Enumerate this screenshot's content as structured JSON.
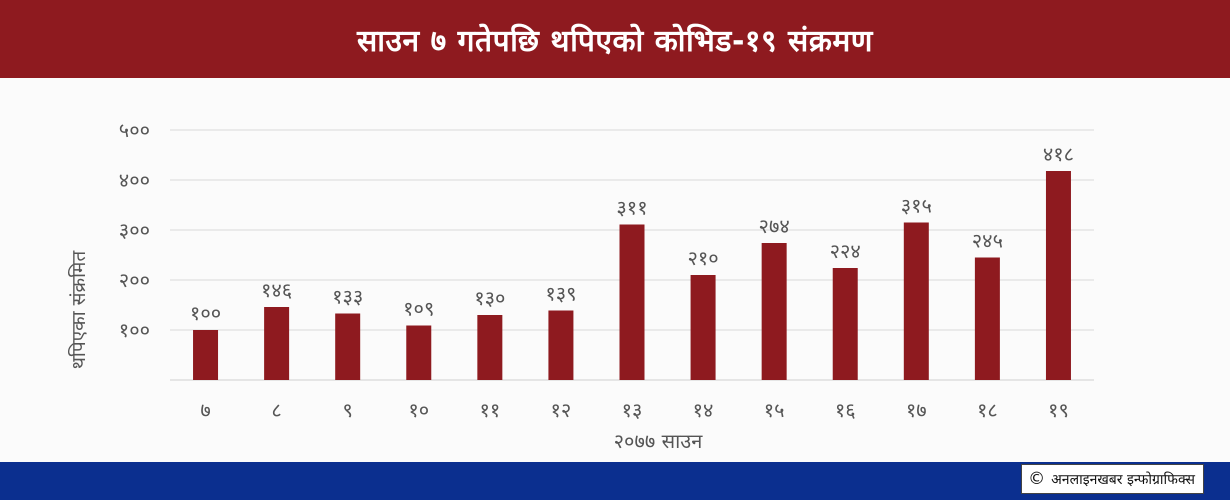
{
  "header": {
    "title": "साउन ७ गतेपछि थपिएको कोभिड-१९ संक्रमण"
  },
  "chart_data": {
    "type": "bar",
    "categories": [
      "७",
      "८",
      "९",
      "१०",
      "११",
      "१२",
      "१३",
      "१४",
      "१५",
      "१६",
      "१७",
      "१८",
      "१९"
    ],
    "values": [
      100,
      146,
      133,
      109,
      130,
      139,
      311,
      210,
      274,
      224,
      315,
      245,
      418
    ],
    "value_labels": [
      "१००",
      "१४६",
      "१३३",
      "१०९",
      "१३०",
      "१३९",
      "३११",
      "२१०",
      "२७४",
      "२२४",
      "३१५",
      "२४५",
      "४१८"
    ],
    "y_ticks": [
      {
        "value": 100,
        "label": "१००"
      },
      {
        "value": 200,
        "label": "२००"
      },
      {
        "value": 300,
        "label": "३००"
      },
      {
        "value": 400,
        "label": "४००"
      },
      {
        "value": 500,
        "label": "५००"
      }
    ],
    "ylim": [
      0,
      500
    ],
    "xlabel": "२०७७ साउन",
    "ylabel": "थपिएका संक्रमित",
    "grid": true,
    "bar_color": "#8e1a1f"
  },
  "footer": {
    "credit_icon": "copyright-icon",
    "credit_text": "अनलाइनखबर इन्फोग्राफिक्स",
    "color": "#0b2f8f"
  }
}
